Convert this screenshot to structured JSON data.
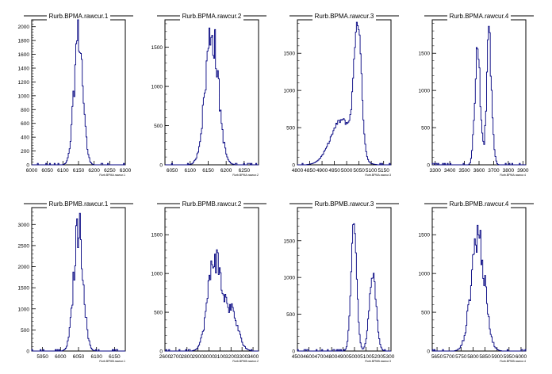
{
  "chart_data": [
    {
      "type": "histogram",
      "title": "Rurb.BPMA.rawcur.1",
      "xlabel": "Rurb.BPMA.rawcur.1",
      "xlim": [
        6000,
        6300
      ],
      "ylim": [
        0,
        2100
      ],
      "xticks": [
        "6000",
        "6050",
        "6100",
        "6150",
        "6200",
        "6250",
        "6300"
      ],
      "yticks": [
        "0",
        "200",
        "400",
        "600",
        "800",
        "1000",
        "1200",
        "1400",
        "1600",
        "1800",
        "2000"
      ],
      "peaks": [
        {
          "center": 6150,
          "sigma": 14,
          "height": 1900
        }
      ],
      "spiky": true
    },
    {
      "type": "histogram",
      "title": "Rurb.BPMA.rawcur.2",
      "xlabel": "Rurb.BPMA.rawcur.2",
      "xlim": [
        6030,
        6290
      ],
      "ylim": [
        0,
        1850
      ],
      "xticks": [
        "6050",
        "6100",
        "6150",
        "6200",
        "6250"
      ],
      "yticks": [
        "0",
        "500",
        "1000",
        "1500"
      ],
      "peaks": [
        {
          "center": 6160,
          "sigma": 18,
          "height": 1700
        }
      ],
      "spiky": true
    },
    {
      "type": "histogram",
      "title": "Rurb.BPMA.rawcur.3",
      "xlabel": "Rurb.BPMA.rawcur.3",
      "xlim": [
        4800,
        5180
      ],
      "ylim": [
        0,
        1950
      ],
      "xticks": [
        "4800",
        "4850",
        "4900",
        "4950",
        "5000",
        "5050",
        "5100",
        "5150"
      ],
      "yticks": [
        "0",
        "500",
        "1000",
        "1500"
      ],
      "peaks": [
        {
          "center": 4980,
          "sigma": 45,
          "height": 600
        },
        {
          "center": 5045,
          "sigma": 15,
          "height": 1750
        }
      ],
      "spiky": false
    },
    {
      "type": "histogram",
      "title": "Rurb.BPMA.rawcur.4",
      "xlabel": "Rurb.BPMA.rawcur.4",
      "xlim": [
        3280,
        3920
      ],
      "ylim": [
        0,
        1950
      ],
      "xticks": [
        "3300",
        "3400",
        "3500",
        "3600",
        "3700",
        "3800",
        "3900"
      ],
      "yticks": [
        "0",
        "500",
        "1000",
        "1500"
      ],
      "peaks": [
        {
          "center": 3590,
          "sigma": 18,
          "height": 1650
        },
        {
          "center": 3670,
          "sigma": 18,
          "height": 1650
        }
      ],
      "spiky": true
    },
    {
      "type": "histogram",
      "title": "Rurb.BPMB.rawcur.1",
      "xlabel": "Rurb.BPMB.rawcur.1",
      "xlim": [
        5920,
        6180
      ],
      "ylim": [
        0,
        3400
      ],
      "xticks": [
        "5950",
        "6000",
        "6050",
        "6100",
        "6150"
      ],
      "yticks": [
        "0",
        "500",
        "1000",
        "1500",
        "2000",
        "2500",
        "3000"
      ],
      "peaks": [
        {
          "center": 6050,
          "sigma": 13,
          "height": 2950
        }
      ],
      "spiky": true
    },
    {
      "type": "histogram",
      "title": "Rurb.BPMB.rawcur.2",
      "xlabel": "Rurb.BPMB.rawcur.2",
      "xlim": [
        2600,
        3450
      ],
      "ylim": [
        0,
        1850
      ],
      "xticks": [
        "2600",
        "2700",
        "2800",
        "2900",
        "3000",
        "3100",
        "3200",
        "3300",
        "3400"
      ],
      "yticks": [
        "0",
        "500",
        "1000",
        "1500"
      ],
      "peaks": [
        {
          "center": 3050,
          "sigma": 60,
          "height": 1200
        },
        {
          "center": 3200,
          "sigma": 60,
          "height": 500
        }
      ],
      "spiky": true
    },
    {
      "type": "histogram",
      "title": "Rurb.BPMB.rawcur.3",
      "xlabel": "Rurb.BPMB.rawcur.3",
      "xlim": [
        4500,
        5320
      ],
      "ylim": [
        0,
        1950
      ],
      "xticks": [
        "4500",
        "4600",
        "4700",
        "4800",
        "4900",
        "5000",
        "5100",
        "5200",
        "5300"
      ],
      "yticks": [
        "0",
        "500",
        "1000",
        "1500"
      ],
      "peaks": [
        {
          "center": 4995,
          "sigma": 25,
          "height": 1700
        },
        {
          "center": 5160,
          "sigma": 30,
          "height": 1050
        }
      ],
      "spiky": false
    },
    {
      "type": "histogram",
      "title": "Rurb.BPMB.rawcur.4",
      "xlabel": "Rurb.BPMB.rawcur.4",
      "xlim": [
        5630,
        6020
      ],
      "ylim": [
        0,
        1850
      ],
      "xticks": [
        "5650",
        "5700",
        "5750",
        "5800",
        "5850",
        "5900",
        "5950",
        "6000"
      ],
      "yticks": [
        "0",
        "500",
        "1000",
        "1500"
      ],
      "peaks": [
        {
          "center": 5820,
          "sigma": 28,
          "height": 1500
        }
      ],
      "spiky": true
    }
  ],
  "colors": {
    "line": "#00007f",
    "frame": "#000000"
  }
}
